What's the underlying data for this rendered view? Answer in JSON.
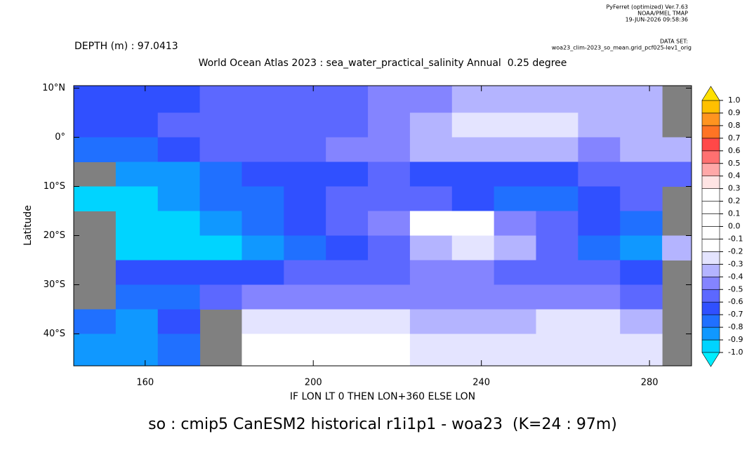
{
  "chart_data": {
    "type": "heatmap",
    "software_lines": [
      "PyFerret (optimized) Ver.7.63",
      "NOAA/PMEL TMAP",
      "19-JUN-2026 09:58:36"
    ],
    "dataset_lines": [
      "DATA SET:",
      "woa23_clim-2023_so_mean.grid_pcf025-lev1_orig"
    ],
    "depth_label": "DEPTH (m) : 97.0413",
    "title": "World Ocean Atlas 2023 : sea_water_practical_salinity Annual  0.25 degree",
    "xlabel": "IF LON LT 0 THEN LON+360 ELSE LON",
    "ylabel": "Latitude",
    "caption": "so : cmip5 CanESM2 historical r1i1p1 - woa23  (K=24 : 97m)",
    "xlim": [
      143,
      290
    ],
    "ylim": [
      -46.5,
      10.5
    ],
    "xticks": [
      160,
      200,
      240,
      280
    ],
    "yticks": [
      {
        "value": 10,
        "label": "10°N"
      },
      {
        "value": 0,
        "label": "0°"
      },
      {
        "value": -10,
        "label": "10°S"
      },
      {
        "value": -20,
        "label": "20°S"
      },
      {
        "value": -30,
        "label": "30°S"
      },
      {
        "value": -40,
        "label": "40°S"
      }
    ],
    "x": [
      148,
      158,
      168,
      178,
      188,
      198,
      208,
      218,
      228,
      238,
      248,
      258,
      268,
      278,
      288
    ],
    "y": [
      7.5,
      2.5,
      -2.5,
      -7.5,
      -12.5,
      -17.5,
      -22.5,
      -27.5,
      -32.5,
      -37.5,
      -42.5
    ],
    "z": [
      [
        -0.7,
        -0.7,
        -0.7,
        -0.6,
        -0.6,
        -0.6,
        -0.6,
        -0.5,
        -0.5,
        -0.4,
        -0.4,
        -0.4,
        -0.4,
        -0.4,
        null
      ],
      [
        -0.7,
        -0.7,
        -0.6,
        -0.6,
        -0.6,
        -0.6,
        -0.6,
        -0.5,
        -0.4,
        -0.3,
        -0.3,
        -0.3,
        -0.4,
        -0.4,
        null
      ],
      [
        -0.8,
        -0.8,
        -0.7,
        -0.6,
        -0.6,
        -0.6,
        -0.5,
        -0.5,
        -0.4,
        -0.4,
        -0.4,
        -0.4,
        -0.5,
        -0.4,
        -0.4
      ],
      [
        null,
        -0.9,
        -0.9,
        -0.8,
        -0.7,
        -0.7,
        -0.7,
        -0.6,
        -0.7,
        -0.7,
        -0.7,
        -0.7,
        -0.6,
        -0.6,
        -0.6
      ],
      [
        -1.0,
        -1.0,
        -0.9,
        -0.8,
        -0.8,
        -0.7,
        -0.6,
        -0.6,
        -0.6,
        -0.7,
        -0.8,
        -0.8,
        -0.7,
        -0.6,
        null
      ],
      [
        null,
        -1.0,
        -1.0,
        -0.9,
        -0.8,
        -0.7,
        -0.6,
        -0.5,
        -0.2,
        -0.2,
        -0.5,
        -0.6,
        -0.7,
        -0.8,
        null
      ],
      [
        null,
        -1.0,
        -1.0,
        -1.0,
        -0.9,
        -0.8,
        -0.7,
        -0.6,
        -0.4,
        -0.3,
        -0.4,
        -0.6,
        -0.8,
        -0.9,
        -0.4
      ],
      [
        null,
        -0.7,
        -0.7,
        -0.7,
        -0.7,
        -0.6,
        -0.6,
        -0.6,
        -0.5,
        -0.5,
        -0.6,
        -0.6,
        -0.6,
        -0.7,
        null
      ],
      [
        null,
        -0.8,
        -0.8,
        -0.6,
        -0.5,
        -0.5,
        -0.5,
        -0.5,
        -0.5,
        -0.5,
        -0.5,
        -0.5,
        -0.5,
        -0.6,
        null
      ],
      [
        -0.8,
        -0.9,
        -0.7,
        null,
        -0.3,
        -0.3,
        -0.3,
        -0.3,
        -0.4,
        -0.4,
        -0.4,
        -0.3,
        -0.3,
        -0.4,
        null
      ],
      [
        -0.9,
        -0.9,
        -0.8,
        null,
        -0.2,
        -0.2,
        -0.2,
        -0.2,
        -0.3,
        -0.3,
        -0.3,
        -0.3,
        -0.3,
        -0.3,
        null
      ]
    ],
    "levels": [
      {
        "value": 1,
        "label": "1.0"
      },
      {
        "value": 0.9,
        "label": "0.9"
      },
      {
        "value": 0.8,
        "label": "0.8"
      },
      {
        "value": 0.7,
        "label": "0.7"
      },
      {
        "value": 0.6,
        "label": "0.6"
      },
      {
        "value": 0.5,
        "label": "0.5"
      },
      {
        "value": 0.4,
        "label": "0.4"
      },
      {
        "value": 0.3,
        "label": "0.3"
      },
      {
        "value": 0.2,
        "label": "0.2"
      },
      {
        "value": 0.1,
        "label": "0.1"
      },
      {
        "value": 0,
        "label": "0.0"
      },
      {
        "value": -0.1,
        "label": "-0.1"
      },
      {
        "value": -0.2,
        "label": "-0.2"
      },
      {
        "value": -0.3,
        "label": "-0.3"
      },
      {
        "value": -0.4,
        "label": "-0.4"
      },
      {
        "value": -0.5,
        "label": "-0.5"
      },
      {
        "value": -0.6,
        "label": "-0.6"
      },
      {
        "value": -0.7,
        "label": "-0.7"
      },
      {
        "value": -0.8,
        "label": "-0.8"
      },
      {
        "value": -0.9,
        "label": "-0.9"
      },
      {
        "value": -1,
        "label": "-1.0"
      }
    ],
    "colors": [
      "#00eeff",
      "#00d4ff",
      "#1098ff",
      "#2070ff",
      "#3050ff",
      "#5c68ff",
      "#8484ff",
      "#b4b4ff",
      "#e4e4ff",
      "#ffffff",
      "#ffffff",
      "#ffffff",
      "#ffffff",
      "#ffffff",
      "#ffe4e4",
      "#ffa8a8",
      "#ff7070",
      "#ff4848",
      "#ff7424",
      "#ff9420",
      "#ffc000",
      "#ffe000"
    ],
    "land_color": "#808080"
  }
}
